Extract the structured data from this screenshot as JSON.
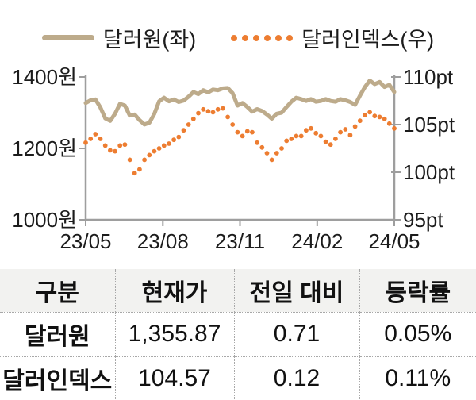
{
  "legend": {
    "series1_label": "달러원(좌)",
    "series2_label": "달러인덱스(우)"
  },
  "colors": {
    "won_line": "#bdab8b",
    "index_dot": "#ed7d31",
    "axis": "#9e9e9e",
    "text": "#1c1c1c",
    "table_header_bg": "#f2f2f0"
  },
  "chart_data": {
    "type": "line",
    "title": "",
    "xlabel": "",
    "ylabel_left": "원",
    "ylabel_right": "pt",
    "grid": false,
    "legend_position": "top",
    "x_ticks": [
      "23/05",
      "23/08",
      "23/11",
      "24/02",
      "24/05"
    ],
    "y_left": {
      "min": 1000,
      "max": 1400,
      "tick_labels": [
        "1400원",
        "1200원",
        "1000원"
      ]
    },
    "y_right": {
      "min": 95,
      "max": 110,
      "tick_labels": [
        "110pt",
        "105pt",
        "100pt",
        "95pt"
      ]
    },
    "series": [
      {
        "name": "달러원(좌)",
        "axis": "left",
        "style": "solid",
        "color": "#bdab8b",
        "values": [
          1327,
          1335,
          1337,
          1315,
          1284,
          1277,
          1297,
          1325,
          1320,
          1292,
          1295,
          1279,
          1267,
          1272,
          1296,
          1332,
          1342,
          1332,
          1337,
          1330,
          1334,
          1345,
          1358,
          1352,
          1363,
          1357,
          1365,
          1363,
          1368,
          1369,
          1355,
          1320,
          1327,
          1316,
          1303,
          1310,
          1305,
          1295,
          1283,
          1297,
          1300,
          1316,
          1331,
          1342,
          1338,
          1333,
          1338,
          1331,
          1333,
          1338,
          1333,
          1331,
          1338,
          1335,
          1330,
          1322,
          1348,
          1372,
          1390,
          1380,
          1386,
          1372,
          1378,
          1358
        ]
      },
      {
        "name": "달러인덱스(우)",
        "axis": "right",
        "style": "dotted",
        "color": "#ed7d31",
        "values": [
          103.1,
          103.5,
          104.0,
          103.5,
          102.8,
          102.3,
          102.2,
          102.8,
          102.9,
          101.3,
          99.9,
          100.3,
          101.3,
          101.8,
          102.2,
          102.5,
          102.8,
          103.0,
          103.4,
          103.7,
          104.4,
          105.0,
          105.6,
          106.2,
          106.6,
          106.4,
          106.3,
          106.6,
          106.7,
          105.8,
          105.0,
          104.2,
          103.8,
          104.3,
          104.2,
          103.1,
          102.6,
          102.0,
          101.3,
          102.0,
          102.5,
          103.3,
          103.5,
          103.8,
          103.8,
          104.4,
          104.6,
          104.1,
          103.8,
          103.2,
          102.9,
          103.5,
          104.2,
          104.5,
          103.9,
          104.8,
          105.4,
          106.0,
          106.3,
          105.9,
          105.8,
          105.6,
          105.1,
          104.6
        ]
      }
    ]
  },
  "table": {
    "headers": [
      "구분",
      "현재가",
      "전일 대비",
      "등락률"
    ],
    "rows": [
      {
        "label": "달러원",
        "values": [
          "1,355.87",
          "0.71",
          "0.05%"
        ]
      },
      {
        "label": "달러인덱스",
        "values": [
          "104.57",
          "0.12",
          "0.11%"
        ]
      }
    ]
  }
}
